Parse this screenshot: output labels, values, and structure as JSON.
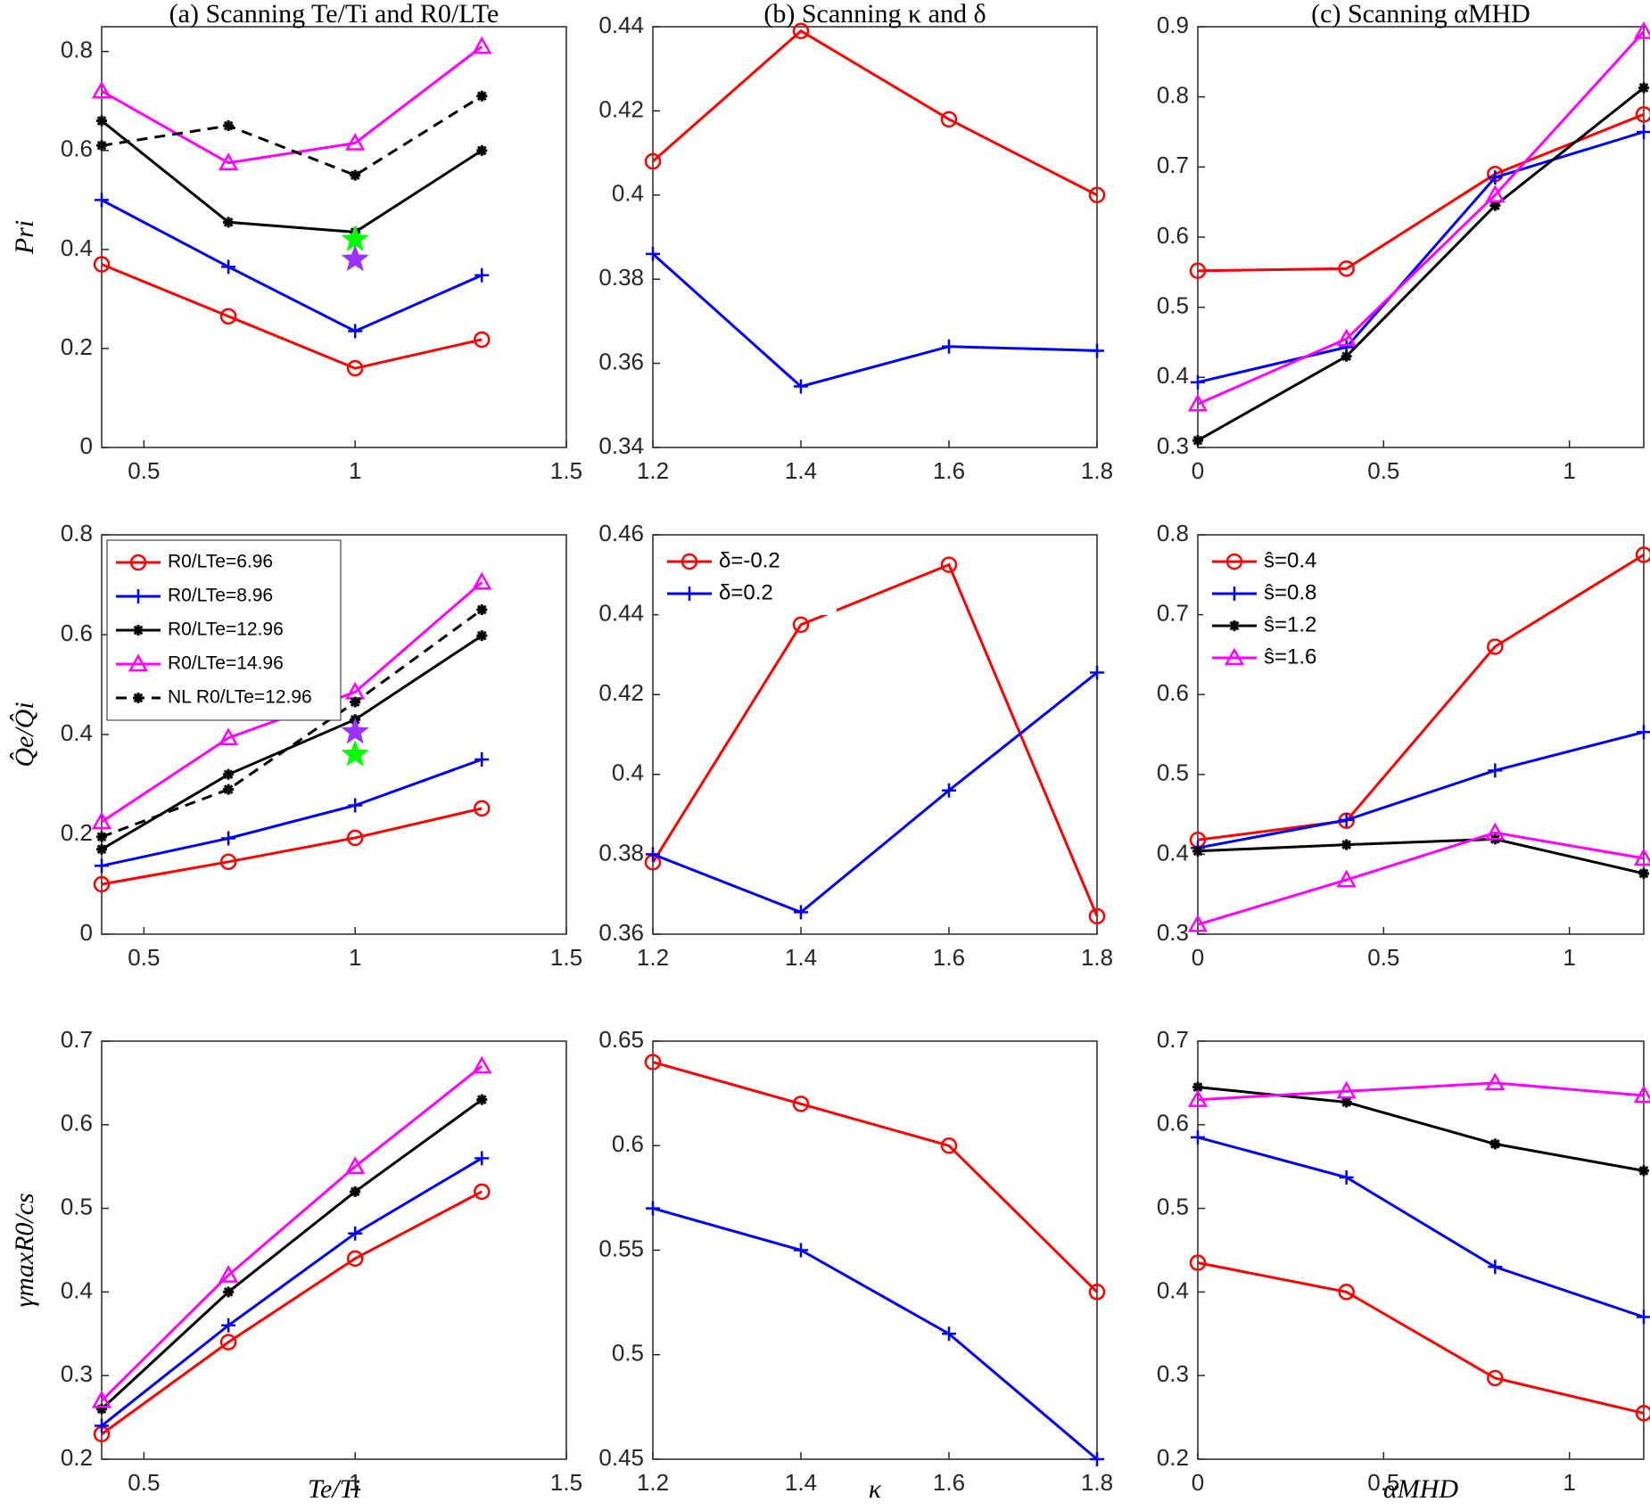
{
  "chart_data": [
    {
      "type": "line",
      "title": "(a) Scanning Te/Ti and R0/LTe",
      "ylabel": "Pri",
      "x": [
        0.4,
        0.7,
        1.0,
        1.3
      ],
      "xlim": [
        0.4,
        1.5
      ],
      "xticks": [
        0.5,
        1,
        1.5
      ],
      "ylim": [
        0,
        0.85
      ],
      "yticks": [
        0,
        0.2,
        0.4,
        0.6,
        0.8
      ],
      "series": [
        {
          "color": "#ff0000",
          "marker": "o",
          "values": [
            0.37,
            0.265,
            0.16,
            0.218
          ]
        },
        {
          "color": "#0000ff",
          "marker": "+",
          "values": [
            0.5,
            0.365,
            0.235,
            0.348
          ]
        },
        {
          "color": "#000000",
          "marker": "*",
          "values": [
            0.66,
            0.455,
            0.435,
            0.6
          ]
        },
        {
          "color": "#ff00ff",
          "marker": "^",
          "values": [
            0.72,
            0.575,
            0.615,
            0.81
          ]
        },
        {
          "color": "#000000",
          "marker": "*",
          "dashed": true,
          "values": [
            0.61,
            0.65,
            0.55,
            0.71
          ]
        }
      ],
      "stars": [
        {
          "x": 1,
          "y": 0.42,
          "color": "#00ff00"
        },
        {
          "x": 1,
          "y": 0.38,
          "color": "#9933ff"
        }
      ]
    },
    {
      "type": "line",
      "ylabel": "Q̂e/Q̂i",
      "legend": "upper-left",
      "x": [
        0.4,
        0.7,
        1.0,
        1.3
      ],
      "xlim": [
        0.4,
        1.5
      ],
      "xticks": [
        0.5,
        1,
        1.5
      ],
      "ylim": [
        0,
        0.8
      ],
      "yticks": [
        0,
        0.2,
        0.4,
        0.6,
        0.8
      ],
      "series": [
        {
          "name": "R0/LTe=6.96",
          "color": "#ff0000",
          "marker": "o",
          "values": [
            0.1,
            0.145,
            0.193,
            0.252
          ]
        },
        {
          "name": "R0/LTe=8.96",
          "color": "#0000ff",
          "marker": "+",
          "values": [
            0.137,
            0.192,
            0.258,
            0.35
          ]
        },
        {
          "name": "R0/LTe=12.96",
          "color": "#000000",
          "marker": "*",
          "values": [
            0.17,
            0.32,
            0.43,
            0.598
          ]
        },
        {
          "name": "R0/LTe=14.96",
          "color": "#ff00ff",
          "marker": "^",
          "values": [
            0.225,
            0.393,
            0.485,
            0.705
          ]
        },
        {
          "name": "NL R0/LTe=12.96",
          "color": "#000000",
          "marker": "*",
          "dashed": true,
          "values": [
            0.195,
            0.29,
            0.465,
            0.65
          ]
        }
      ],
      "stars": [
        {
          "x": 1,
          "y": 0.405,
          "color": "#9933ff"
        },
        {
          "x": 1,
          "y": 0.36,
          "color": "#00ff00"
        }
      ]
    },
    {
      "type": "line",
      "ylabel": "γmaxR0/cs",
      "xlabel": "Te/Ti",
      "x": [
        0.4,
        0.7,
        1.0,
        1.3
      ],
      "xlim": [
        0.4,
        1.5
      ],
      "xticks": [
        0.5,
        1,
        1.5
      ],
      "ylim": [
        0.2,
        0.7
      ],
      "yticks": [
        0.2,
        0.3,
        0.4,
        0.5,
        0.6,
        0.7
      ],
      "series": [
        {
          "color": "#ff0000",
          "marker": "o",
          "values": [
            0.23,
            0.34,
            0.44,
            0.52
          ]
        },
        {
          "color": "#0000ff",
          "marker": "+",
          "values": [
            0.24,
            0.36,
            0.47,
            0.56
          ]
        },
        {
          "color": "#000000",
          "marker": "*",
          "values": [
            0.26,
            0.4,
            0.52,
            0.63
          ]
        },
        {
          "color": "#ff00ff",
          "marker": "^",
          "values": [
            0.27,
            0.42,
            0.55,
            0.67
          ]
        }
      ]
    },
    {
      "type": "line",
      "title": "(b) Scanning κ and δ",
      "x": [
        1.2,
        1.4,
        1.6,
        1.8
      ],
      "xlim": [
        1.2,
        1.8
      ],
      "xticks": [
        1.2,
        1.4,
        1.6,
        1.8
      ],
      "ylim": [
        0.34,
        0.44
      ],
      "yticks": [
        0.34,
        0.36,
        0.38,
        0.4,
        0.42,
        0.44
      ],
      "series": [
        {
          "color": "#ff0000",
          "marker": "o",
          "values": [
            0.408,
            0.439,
            0.418,
            0.4
          ]
        },
        {
          "color": "#0000ff",
          "marker": "+",
          "values": [
            0.386,
            0.3545,
            0.364,
            0.363
          ]
        }
      ]
    },
    {
      "type": "line",
      "legend": "upper-left",
      "x": [
        1.2,
        1.4,
        1.6,
        1.8
      ],
      "xlim": [
        1.2,
        1.8
      ],
      "xticks": [
        1.2,
        1.4,
        1.6,
        1.8
      ],
      "ylim": [
        0.36,
        0.46
      ],
      "yticks": [
        0.36,
        0.38,
        0.4,
        0.42,
        0.44,
        0.46
      ],
      "series": [
        {
          "name": "δ=-0.2",
          "color": "#ff0000",
          "marker": "o",
          "values": [
            0.378,
            0.4375,
            0.4525,
            0.3645
          ]
        },
        {
          "name": "δ=0.2",
          "color": "#0000ff",
          "marker": "+",
          "values": [
            0.38,
            0.3655,
            0.396,
            0.4255
          ]
        }
      ]
    },
    {
      "type": "line",
      "xlabel": "κ",
      "x": [
        1.2,
        1.4,
        1.6,
        1.8
      ],
      "xlim": [
        1.2,
        1.8
      ],
      "xticks": [
        1.2,
        1.4,
        1.6,
        1.8
      ],
      "ylim": [
        0.45,
        0.65
      ],
      "yticks": [
        0.45,
        0.5,
        0.55,
        0.6,
        0.65
      ],
      "series": [
        {
          "color": "#ff0000",
          "marker": "o",
          "values": [
            0.64,
            0.62,
            0.6,
            0.53
          ]
        },
        {
          "color": "#0000ff",
          "marker": "+",
          "values": [
            0.57,
            0.55,
            0.51,
            0.45
          ]
        }
      ]
    },
    {
      "type": "line",
      "title": "(c) Scanning αMHD",
      "x": [
        0,
        0.4,
        0.8,
        1.2
      ],
      "xlim": [
        0,
        1.2
      ],
      "xticks": [
        0,
        0.5,
        1
      ],
      "ylim": [
        0.3,
        0.9
      ],
      "yticks": [
        0.3,
        0.4,
        0.5,
        0.6,
        0.7,
        0.8,
        0.9
      ],
      "series": [
        {
          "color": "#ff0000",
          "marker": "o",
          "values": [
            0.552,
            0.555,
            0.69,
            0.775
          ]
        },
        {
          "color": "#0000ff",
          "marker": "+",
          "values": [
            0.393,
            0.443,
            0.685,
            0.75
          ]
        },
        {
          "color": "#000000",
          "marker": "*",
          "values": [
            0.31,
            0.43,
            0.645,
            0.813
          ]
        },
        {
          "color": "#ff00ff",
          "marker": "^",
          "values": [
            0.362,
            0.455,
            0.66,
            0.893
          ]
        }
      ]
    },
    {
      "type": "line",
      "legend": "upper-left",
      "x": [
        0,
        0.4,
        0.8,
        1.2
      ],
      "xlim": [
        0,
        1.2
      ],
      "xticks": [
        0,
        0.5,
        1
      ],
      "ylim": [
        0.3,
        0.8
      ],
      "yticks": [
        0.3,
        0.4,
        0.5,
        0.6,
        0.7,
        0.8
      ],
      "series": [
        {
          "name": "ŝ=0.4",
          "color": "#ff0000",
          "marker": "o",
          "values": [
            0.418,
            0.442,
            0.66,
            0.775
          ]
        },
        {
          "name": "ŝ=0.8",
          "color": "#0000ff",
          "marker": "+",
          "values": [
            0.408,
            0.443,
            0.505,
            0.553
          ]
        },
        {
          "name": "ŝ=1.2",
          "color": "#000000",
          "marker": "*",
          "values": [
            0.404,
            0.412,
            0.419,
            0.376
          ]
        },
        {
          "name": "ŝ=1.6",
          "color": "#ff00ff",
          "marker": "^",
          "values": [
            0.312,
            0.368,
            0.427,
            0.395
          ]
        }
      ]
    },
    {
      "type": "line",
      "xlabel": "αMHD",
      "x": [
        0,
        0.4,
        0.8,
        1.2
      ],
      "xlim": [
        0,
        1.2
      ],
      "xticks": [
        0,
        0.5,
        1
      ],
      "ylim": [
        0.2,
        0.7
      ],
      "yticks": [
        0.2,
        0.3,
        0.4,
        0.5,
        0.6,
        0.7
      ],
      "series": [
        {
          "color": "#ff0000",
          "marker": "o",
          "values": [
            0.435,
            0.4,
            0.297,
            0.255
          ]
        },
        {
          "color": "#0000ff",
          "marker": "+",
          "values": [
            0.585,
            0.537,
            0.43,
            0.37
          ]
        },
        {
          "color": "#000000",
          "marker": "*",
          "values": [
            0.645,
            0.627,
            0.577,
            0.545
          ]
        },
        {
          "color": "#ff00ff",
          "marker": "^",
          "values": [
            0.63,
            0.64,
            0.65,
            0.635
          ]
        }
      ]
    }
  ]
}
